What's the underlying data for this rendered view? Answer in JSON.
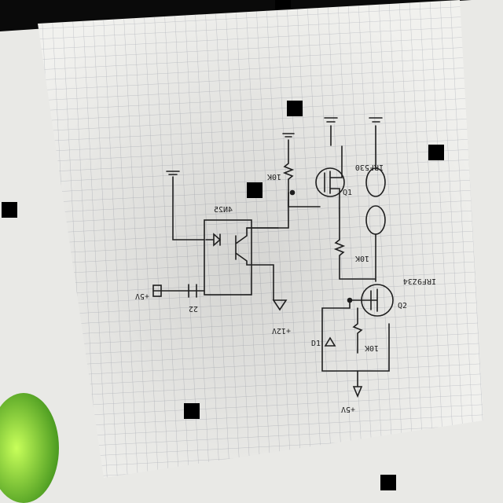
{
  "photo": {
    "subject": "Hand-drawn circuit schematic on grid paper, photographed (mirrored)",
    "background_color": "#0a0a0a",
    "paper_color": "#eeeeeb",
    "grid_color": "#b9bcc2",
    "ink_color": "#1e1e1e"
  },
  "labels": {
    "optocoupler": "4N25",
    "mosfet_top": "IRF530",
    "mosfet_bottom": "IRF9Z34",
    "resistor_a": "10K",
    "resistor_b": "10K",
    "resistor_c": "10K",
    "input": "+5V",
    "input_resistor": "22",
    "supply_label": "+12V",
    "ground_label": "+5V",
    "q1": "Q1",
    "q2": "Q2",
    "diode_label": "D1"
  }
}
